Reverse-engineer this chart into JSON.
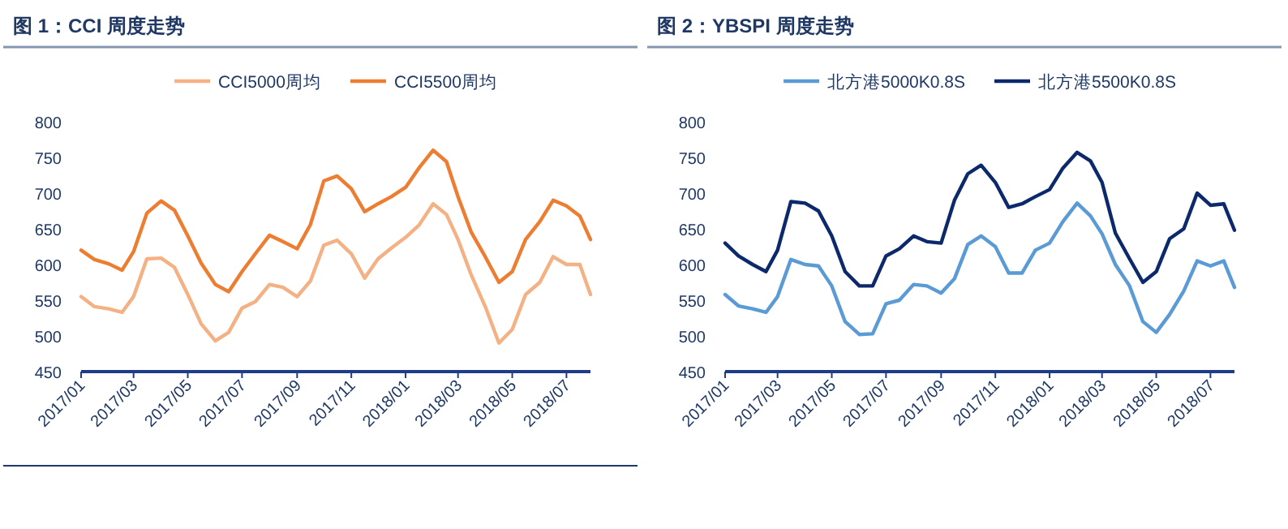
{
  "chart_data": [
    {
      "type": "line",
      "title": "图 1：CCI 周度走势",
      "legend": "top",
      "grid": false,
      "x": [
        "2017-01-01",
        "2017-01-16",
        "2017-02-01",
        "2017-02-16",
        "2017-03-01",
        "2017-03-16",
        "2017-04-01",
        "2017-04-16",
        "2017-05-01",
        "2017-05-16",
        "2017-06-01",
        "2017-06-16",
        "2017-07-01",
        "2017-07-16",
        "2017-08-01",
        "2017-08-16",
        "2017-09-01",
        "2017-09-16",
        "2017-10-01",
        "2017-10-16",
        "2017-11-01",
        "2017-11-16",
        "2017-12-01",
        "2017-12-16",
        "2018-01-01",
        "2018-01-16",
        "2018-02-01",
        "2018-02-16",
        "2018-03-01",
        "2018-03-16",
        "2018-04-01",
        "2018-04-16",
        "2018-05-01",
        "2018-05-16",
        "2018-06-01",
        "2018-06-16",
        "2018-07-01",
        "2018-07-16",
        "2018-07-28"
      ],
      "series": [
        {
          "name": "CCI5000周均",
          "color": "#f4b183",
          "values": [
            555,
            541,
            538,
            533,
            555,
            608,
            609,
            596,
            558,
            517,
            493,
            505,
            539,
            548,
            572,
            568,
            555,
            577,
            627,
            634,
            615,
            581,
            608,
            623,
            638,
            655,
            685,
            670,
            635,
            585,
            540,
            490,
            509,
            558,
            575,
            611,
            600,
            600,
            558
          ]
        },
        {
          "name": "CCI5500周均",
          "color": "#ed7d31",
          "values": [
            620,
            607,
            601,
            592,
            618,
            672,
            689,
            676,
            640,
            602,
            572,
            562,
            590,
            615,
            641,
            632,
            622,
            656,
            717,
            724,
            706,
            674,
            685,
            695,
            708,
            735,
            760,
            744,
            695,
            645,
            610,
            575,
            590,
            635,
            660,
            690,
            682,
            668,
            635
          ]
        }
      ],
      "xlim": [
        "2017-01-01",
        "2018-07-28"
      ],
      "xticks": [
        {
          "value": "2017-01-01",
          "label": "2017/01"
        },
        {
          "value": "2017-03-01",
          "label": "2017/03"
        },
        {
          "value": "2017-05-01",
          "label": "2017/05"
        },
        {
          "value": "2017-07-01",
          "label": "2017/07"
        },
        {
          "value": "2017-09-01",
          "label": "2017/09"
        },
        {
          "value": "2017-11-01",
          "label": "2017/11"
        },
        {
          "value": "2018-01-01",
          "label": "2018/01"
        },
        {
          "value": "2018-03-01",
          "label": "2018/03"
        },
        {
          "value": "2018-05-01",
          "label": "2018/05"
        },
        {
          "value": "2018-07-01",
          "label": "2018/07"
        }
      ],
      "ylim": [
        450,
        800
      ],
      "yticks": [
        450,
        500,
        550,
        600,
        650,
        700,
        750,
        800
      ]
    },
    {
      "type": "line",
      "title": "图 2：YBSPI 周度走势",
      "legend": "top",
      "grid": false,
      "x": [
        "2017-01-01",
        "2017-01-16",
        "2017-02-01",
        "2017-02-16",
        "2017-03-01",
        "2017-03-16",
        "2017-04-01",
        "2017-04-16",
        "2017-05-01",
        "2017-05-16",
        "2017-06-01",
        "2017-06-16",
        "2017-07-01",
        "2017-07-16",
        "2017-08-01",
        "2017-08-16",
        "2017-09-01",
        "2017-09-16",
        "2017-10-01",
        "2017-10-16",
        "2017-11-01",
        "2017-11-16",
        "2017-12-01",
        "2017-12-16",
        "2018-01-01",
        "2018-01-16",
        "2018-02-01",
        "2018-02-16",
        "2018-03-01",
        "2018-03-16",
        "2018-04-01",
        "2018-04-16",
        "2018-05-01",
        "2018-05-16",
        "2018-06-01",
        "2018-06-16",
        "2018-07-01",
        "2018-07-16",
        "2018-07-28"
      ],
      "series": [
        {
          "name": "北方港5000K0.8S",
          "color": "#5b9bd5",
          "values": [
            558,
            542,
            538,
            533,
            555,
            607,
            600,
            598,
            570,
            520,
            502,
            503,
            545,
            550,
            572,
            570,
            560,
            580,
            628,
            640,
            625,
            588,
            588,
            620,
            630,
            660,
            686,
            668,
            643,
            600,
            570,
            520,
            505,
            530,
            563,
            605,
            598,
            605,
            568
          ]
        },
        {
          "name": "北方港5500K0.8S",
          "color": "#0c2a6b",
          "values": [
            630,
            612,
            600,
            590,
            620,
            688,
            686,
            675,
            640,
            590,
            570,
            570,
            612,
            622,
            640,
            632,
            630,
            690,
            727,
            739,
            715,
            680,
            685,
            695,
            705,
            735,
            757,
            745,
            715,
            644,
            608,
            575,
            590,
            636,
            650,
            700,
            683,
            685,
            648
          ]
        }
      ],
      "xlim": [
        "2017-01-01",
        "2018-07-28"
      ],
      "xticks": [
        {
          "value": "2017-01-01",
          "label": "2017/01"
        },
        {
          "value": "2017-03-01",
          "label": "2017/03"
        },
        {
          "value": "2017-05-01",
          "label": "2017/05"
        },
        {
          "value": "2017-07-01",
          "label": "2017/07"
        },
        {
          "value": "2017-09-01",
          "label": "2017/09"
        },
        {
          "value": "2017-11-01",
          "label": "2017/11"
        },
        {
          "value": "2018-01-01",
          "label": "2018/01"
        },
        {
          "value": "2018-03-01",
          "label": "2018/03"
        },
        {
          "value": "2018-05-01",
          "label": "2018/05"
        },
        {
          "value": "2018-07-01",
          "label": "2018/07"
        }
      ],
      "ylim": [
        450,
        800
      ],
      "yticks": [
        450,
        500,
        550,
        600,
        650,
        700,
        750,
        800
      ]
    }
  ]
}
